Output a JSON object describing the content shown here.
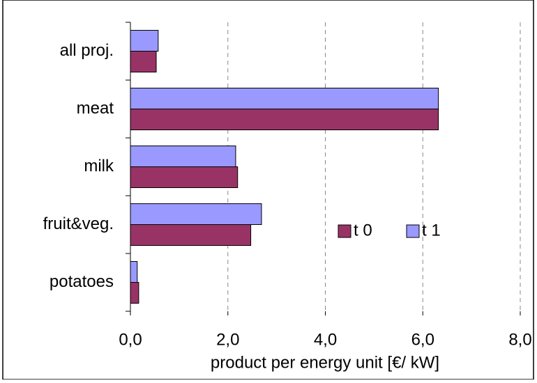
{
  "chart_data": {
    "type": "bar",
    "orientation": "horizontal",
    "categories": [
      "all proj.",
      "meat",
      "milk",
      "fruit&veg.",
      "potatoes"
    ],
    "series": [
      {
        "name": "t 0",
        "color": "#993366",
        "values": [
          0.53,
          6.32,
          2.2,
          2.47,
          0.17
        ]
      },
      {
        "name": "t 1",
        "color": "#9999ff",
        "values": [
          0.57,
          6.32,
          2.16,
          2.69,
          0.14
        ]
      }
    ],
    "xlim": [
      0,
      8
    ],
    "xticks": [
      {
        "value": 0,
        "label": "0,0"
      },
      {
        "value": 2,
        "label": "2,0"
      },
      {
        "value": 4,
        "label": "4,0"
      },
      {
        "value": 6,
        "label": "6,0"
      },
      {
        "value": 8,
        "label": "8,0"
      }
    ],
    "xlabel": "product per energy unit [€/ kW]",
    "grid": true
  }
}
